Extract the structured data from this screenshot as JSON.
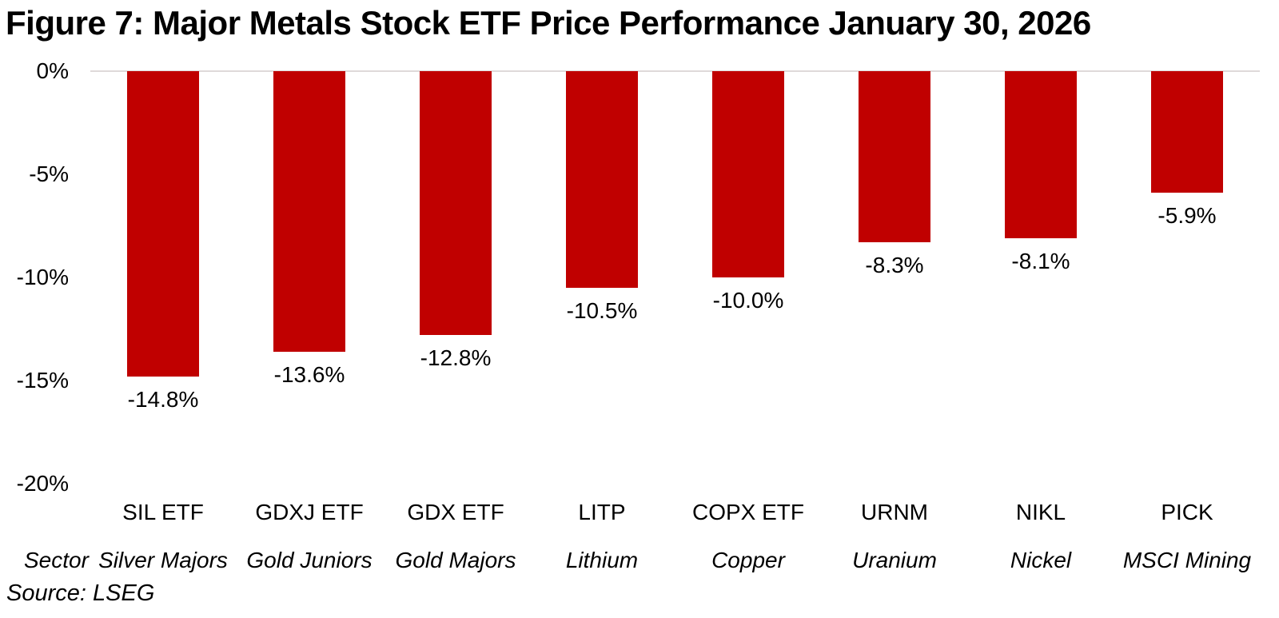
{
  "chart_data": {
    "type": "bar",
    "title": "Figure 7: Major Metals Stock ETF Price Performance January 30, 2026",
    "categories": [
      "SIL ETF",
      "GDXJ ETF",
      "GDX ETF",
      "LITP",
      "COPX ETF",
      "URNM",
      "NIKL",
      "PICK"
    ],
    "sectors": [
      "Silver Majors",
      "Gold Juniors",
      "Gold Majors",
      "Lithium",
      "Copper",
      "Uranium",
      "Nickel",
      "MSCI Mining"
    ],
    "values": [
      -14.8,
      -13.6,
      -12.8,
      -10.5,
      -10.0,
      -8.3,
      -8.1,
      -5.9
    ],
    "value_labels": [
      "-14.8%",
      "-13.6%",
      "-12.8%",
      "-10.5%",
      "-10.0%",
      "-8.3%",
      "-8.1%",
      "-5.9%"
    ],
    "y_ticks": [
      {
        "value": 0,
        "label": "0%"
      },
      {
        "value": -5,
        "label": "-5%"
      },
      {
        "value": -10,
        "label": "-10%"
      },
      {
        "value": -15,
        "label": "-15%"
      },
      {
        "value": -20,
        "label": "-20%"
      }
    ],
    "ylim": [
      -20,
      0
    ],
    "xlabel": "",
    "ylabel": "",
    "grid": "zero-line-only",
    "legend": "none",
    "bar_color": "#c00000",
    "gridline_color": "#dfdada",
    "sector_row_label": "Sector",
    "source": "Source: LSEG"
  }
}
